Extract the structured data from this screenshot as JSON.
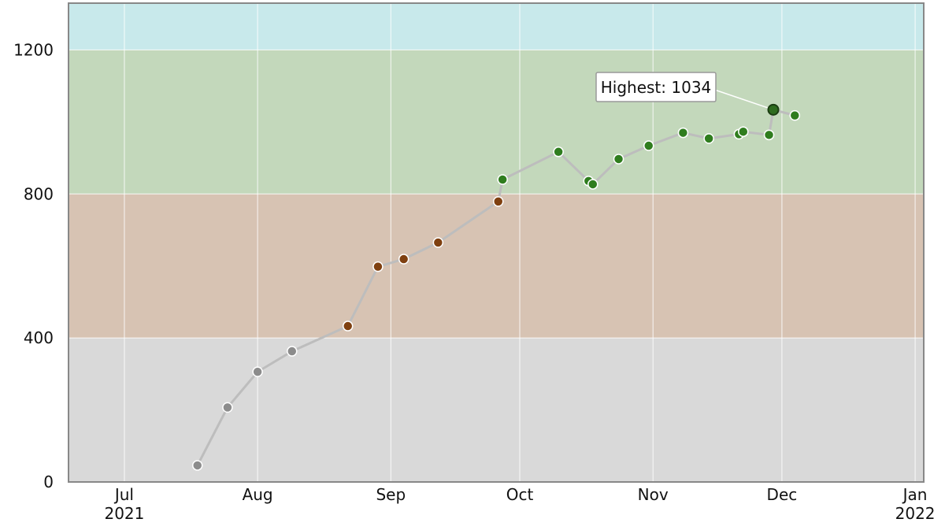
{
  "chart_data": {
    "type": "line",
    "title": "",
    "xlabel": "",
    "ylabel": "",
    "x_axis": {
      "type": "date",
      "range": [
        "2021-06-18",
        "2022-01-03"
      ],
      "ticks": [
        {
          "date": "2021-07-01",
          "label": "Jul",
          "year": "2021"
        },
        {
          "date": "2021-08-01",
          "label": "Aug",
          "year": ""
        },
        {
          "date": "2021-09-01",
          "label": "Sep",
          "year": ""
        },
        {
          "date": "2021-10-01",
          "label": "Oct",
          "year": ""
        },
        {
          "date": "2021-11-01",
          "label": "Nov",
          "year": ""
        },
        {
          "date": "2021-12-01",
          "label": "Dec",
          "year": ""
        },
        {
          "date": "2022-01-01",
          "label": "Jan",
          "year": "2022"
        }
      ]
    },
    "y_axis": {
      "range": [
        0,
        1330
      ],
      "ticks": [
        0,
        400,
        800,
        1200
      ]
    },
    "grid": true,
    "bands": [
      {
        "from": 0,
        "to": 400,
        "color": "#d9d9d9"
      },
      {
        "from": 400,
        "to": 800,
        "color": "#d7c3b3"
      },
      {
        "from": 800,
        "to": 1200,
        "color": "#c3d8bb"
      },
      {
        "from": 1200,
        "to": 1330,
        "color": "#c8e9eb"
      }
    ],
    "line_color": "#bdbdbd",
    "series": [
      {
        "points": [
          {
            "x": "2021-07-18",
            "y": 46,
            "color": "#8c8c8c"
          },
          {
            "x": "2021-07-25",
            "y": 207,
            "color": "#8c8c8c"
          },
          {
            "x": "2021-08-01",
            "y": 306,
            "color": "#8c8c8c"
          },
          {
            "x": "2021-08-09",
            "y": 363,
            "color": "#8c8c8c"
          },
          {
            "x": "2021-08-22",
            "y": 433,
            "color": "#7f4010"
          },
          {
            "x": "2021-08-29",
            "y": 598,
            "color": "#7f4010"
          },
          {
            "x": "2021-09-04",
            "y": 619,
            "color": "#7f4010"
          },
          {
            "x": "2021-09-12",
            "y": 665,
            "color": "#7f4010"
          },
          {
            "x": "2021-09-26",
            "y": 779,
            "color": "#7f4010"
          },
          {
            "x": "2021-09-27",
            "y": 840,
            "color": "#2f7d1e"
          },
          {
            "x": "2021-10-10",
            "y": 917,
            "color": "#2f7d1e"
          },
          {
            "x": "2021-10-17",
            "y": 836,
            "color": "#2f7d1e"
          },
          {
            "x": "2021-10-18",
            "y": 827,
            "color": "#2f7d1e"
          },
          {
            "x": "2021-10-24",
            "y": 897,
            "color": "#2f7d1e"
          },
          {
            "x": "2021-10-31",
            "y": 934,
            "color": "#2f7d1e"
          },
          {
            "x": "2021-11-08",
            "y": 970,
            "color": "#2f7d1e"
          },
          {
            "x": "2021-11-14",
            "y": 954,
            "color": "#2f7d1e"
          },
          {
            "x": "2021-11-21",
            "y": 966,
            "color": "#2f7d1e"
          },
          {
            "x": "2021-11-22",
            "y": 973,
            "color": "#2f7d1e"
          },
          {
            "x": "2021-11-28",
            "y": 964,
            "color": "#2f7d1e"
          },
          {
            "x": "2021-11-29",
            "y": 1034,
            "color": "#2e6b1f",
            "highlight": true
          },
          {
            "x": "2021-12-04",
            "y": 1018,
            "color": "#2f7d1e"
          }
        ]
      }
    ],
    "annotation": {
      "text": "Highest: 1034",
      "point_x": "2021-11-29",
      "point_y": 1034
    },
    "frame_color": "#888888"
  }
}
